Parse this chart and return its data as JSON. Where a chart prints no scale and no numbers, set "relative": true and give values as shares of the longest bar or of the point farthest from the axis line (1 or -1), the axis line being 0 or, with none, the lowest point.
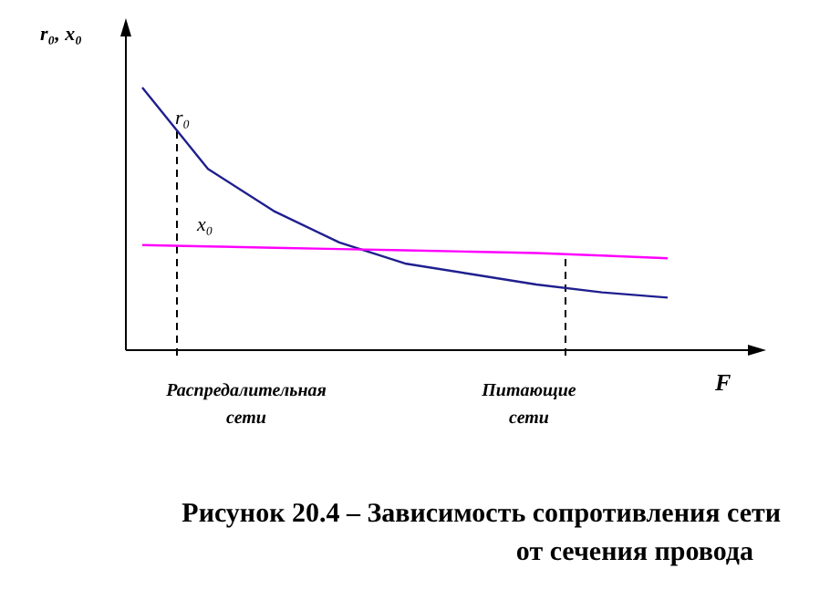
{
  "chart_data": {
    "type": "line",
    "relative": true,
    "title": "Рисунок 20.4 – Зависимость сопротивления сети от сечения провода",
    "xlabel": "F",
    "ylabel": "r₀, x₀",
    "marker": "none",
    "line_style": "solid",
    "categories": [
      null,
      null,
      null,
      null,
      null,
      null,
      null,
      null,
      null
    ],
    "series": [
      {
        "name": "r₀",
        "color": "#1f1f8f",
        "values": [
          1,
          0.69,
          0.53,
          0.41,
          0.33,
          0.29,
          0.25,
          0.22,
          0.2
        ]
      },
      {
        "name": "x₀",
        "color": "#ff00ff",
        "values": [
          0.4,
          0.395,
          0.39,
          0.385,
          0.38,
          0.375,
          0.37,
          0.36,
          0.35
        ]
      }
    ],
    "annotations": [
      "Распредалительная сети",
      "Питающие сети"
    ]
  }
}
